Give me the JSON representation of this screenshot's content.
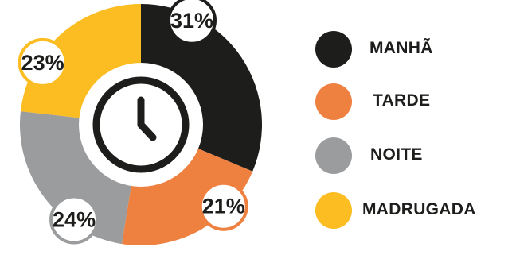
{
  "chart_data": {
    "type": "pie",
    "title": "",
    "slices": [
      {
        "label": "MANHÃ",
        "value": 31,
        "value_label": "31%",
        "color": "#1d1d1b"
      },
      {
        "label": "TARDE",
        "value": 21,
        "value_label": "21%",
        "color": "#ef8140"
      },
      {
        "label": "NOITE",
        "value": 24,
        "value_label": "24%",
        "color": "#9b9c9e"
      },
      {
        "label": "MADRUGADA",
        "value": 23,
        "value_label": "23%",
        "color": "#fbbd21"
      }
    ],
    "legend_position": "right",
    "center_icon": "clock-icon"
  }
}
